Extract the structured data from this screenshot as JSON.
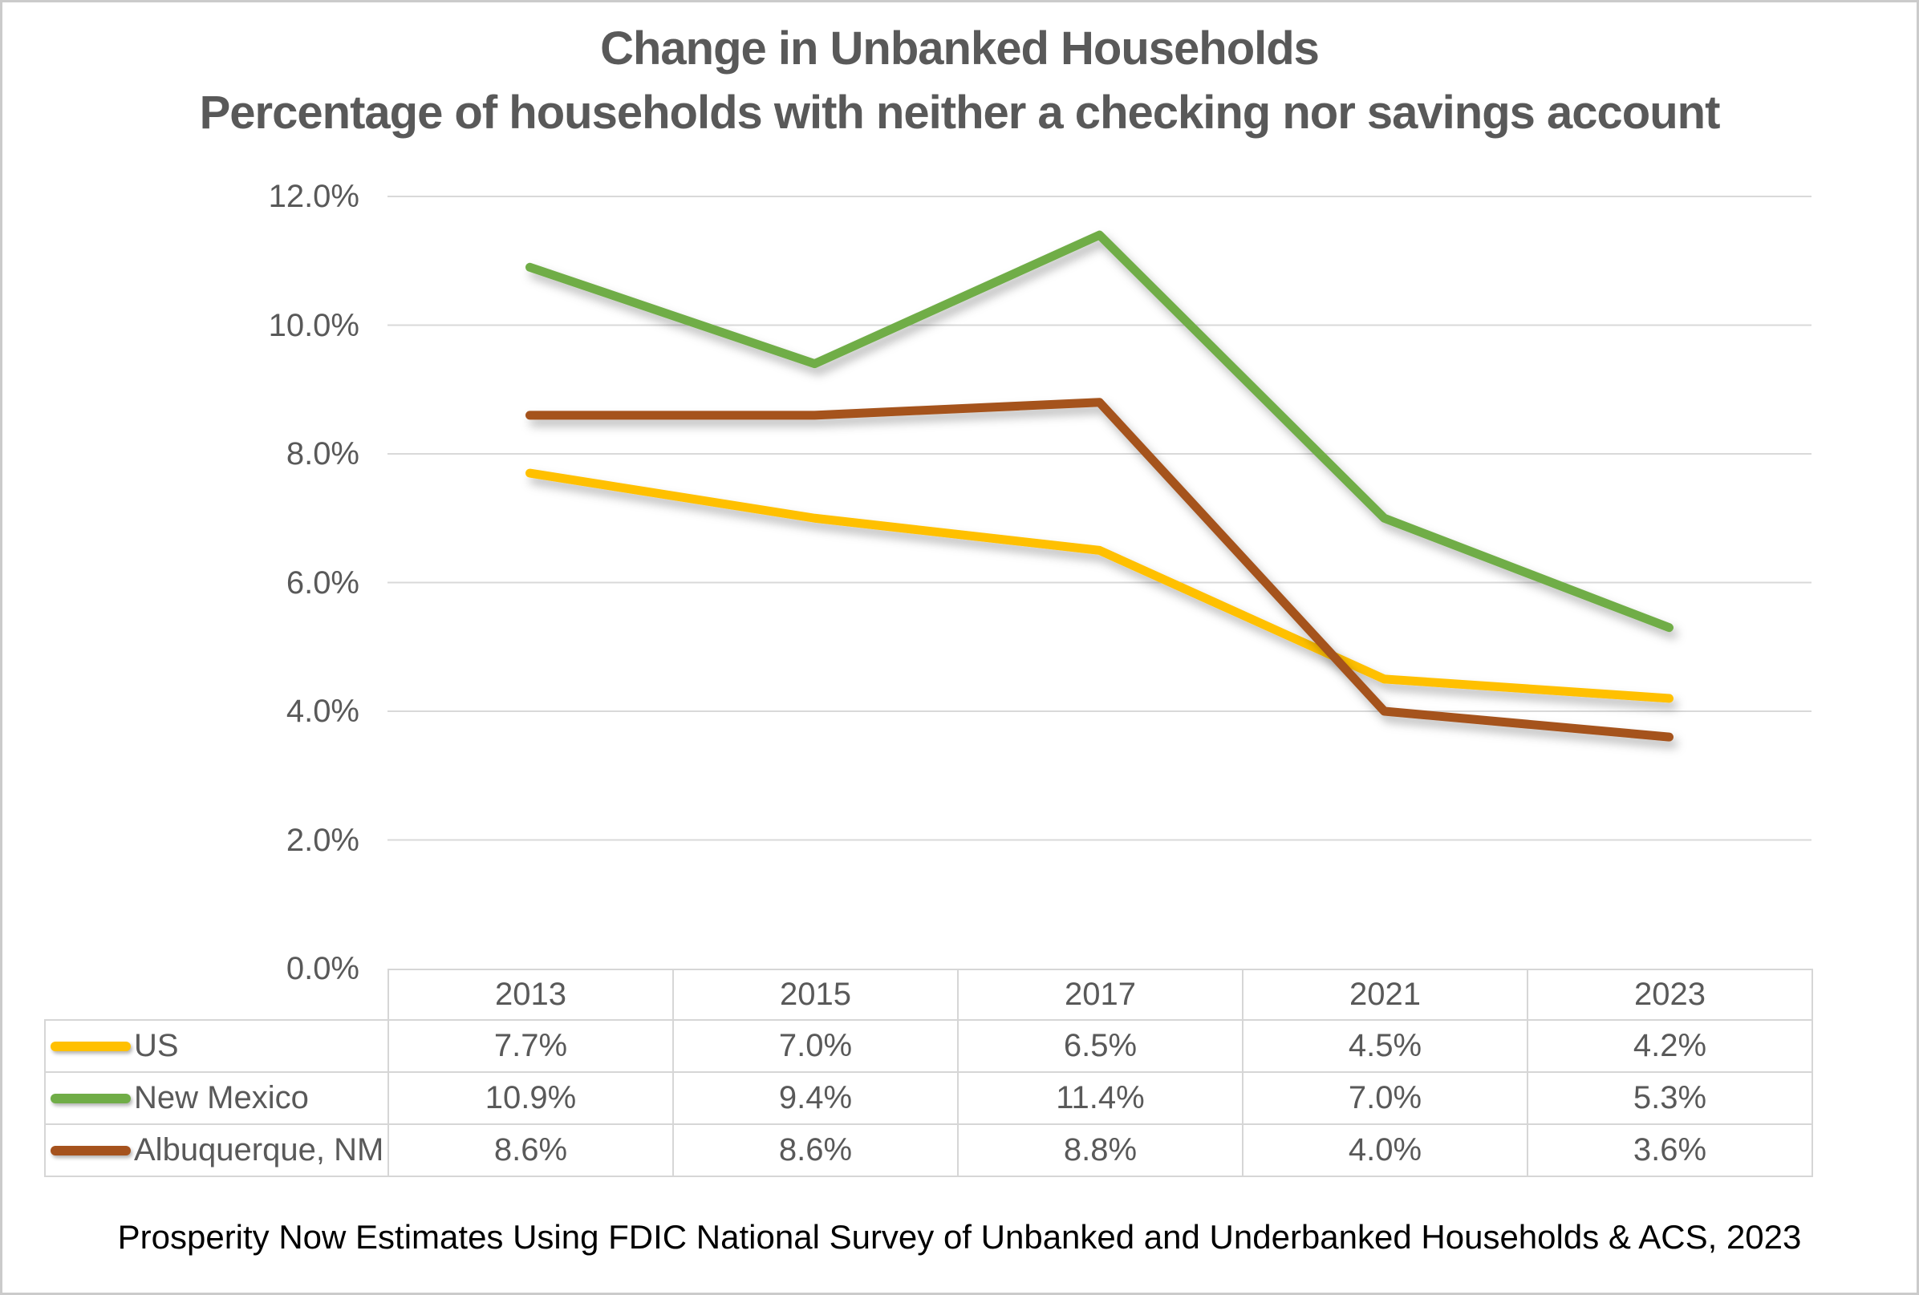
{
  "title": "Change in Unbanked Households",
  "subtitle": "Percentage of households with neither a checking nor savings account",
  "footer": "Prosperity Now Estimates Using FDIC National Survey of Unbanked and Underbanked Households & ACS, 2023",
  "chart_data": {
    "type": "line",
    "title": "Change in Unbanked Households",
    "subtitle": "Percentage of households with neither a checking nor savings account",
    "categories": [
      "2013",
      "2015",
      "2017",
      "2021",
      "2023"
    ],
    "series": [
      {
        "name": "US",
        "color": "#FFC000",
        "values": [
          7.7,
          7.0,
          6.5,
          4.5,
          4.2
        ],
        "display_values": [
          "7.7%",
          "7.0%",
          "6.5%",
          "4.5%",
          "4.2%"
        ]
      },
      {
        "name": "New Mexico",
        "color": "#70AD47",
        "values": [
          10.9,
          9.4,
          11.4,
          7.0,
          5.3
        ],
        "display_values": [
          "10.9%",
          "9.4%",
          "11.4%",
          "7.0%",
          "5.3%"
        ]
      },
      {
        "name": "Albuquerque, NM",
        "color": "#A5521D",
        "values": [
          8.6,
          8.6,
          8.8,
          4.0,
          3.6
        ],
        "display_values": [
          "8.6%",
          "8.6%",
          "8.8%",
          "4.0%",
          "3.6%"
        ]
      }
    ],
    "y_axis": {
      "tick_labels": [
        "12.0%",
        "10.0%",
        "8.0%",
        "6.0%",
        "4.0%",
        "2.0%",
        "0.0%"
      ],
      "min": 0,
      "max": 12,
      "step": 2
    },
    "grid": true,
    "legend_position": "data-table-left-column",
    "colors": {
      "grid": "#D9D9D9",
      "chart_text": "#595959",
      "table_border": "#D6D6D6",
      "footer_text": "#000000",
      "canvas_border": "#CBCBCB"
    }
  }
}
